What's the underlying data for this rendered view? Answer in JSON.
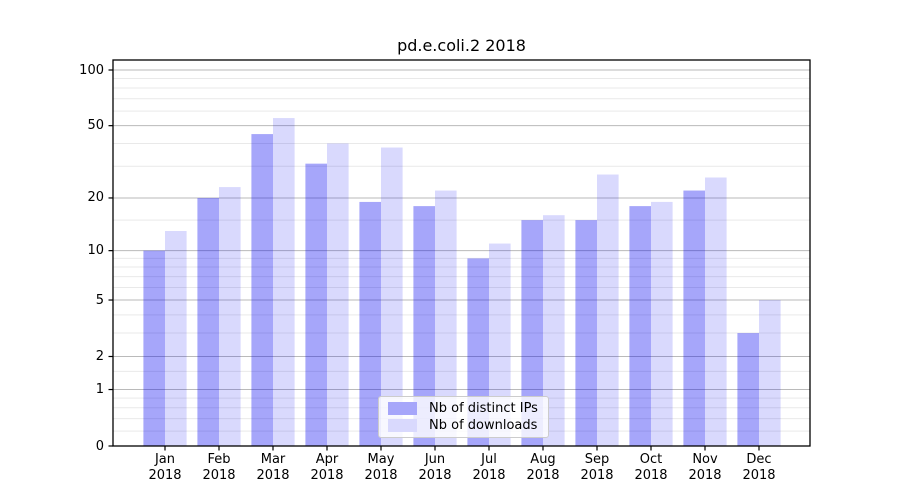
{
  "chart_data": {
    "type": "bar",
    "title": "pd.e.coli.2 2018",
    "categories": [
      "Jan",
      "Feb",
      "Mar",
      "Apr",
      "May",
      "Jun",
      "Jul",
      "Aug",
      "Sep",
      "Oct",
      "Nov",
      "Dec"
    ],
    "category_year": "2018",
    "series": [
      {
        "name": "Nb of distinct IPs",
        "base_color": "#0000f0",
        "opacity": 0.35,
        "rendered_color": "#a6a6fa",
        "values": [
          10,
          20,
          45,
          31,
          19,
          18,
          9,
          15,
          15,
          18,
          22,
          3
        ]
      },
      {
        "name": "Nb of downloads",
        "base_color": "#0000f0",
        "opacity": 0.15,
        "rendered_color": "#d9d9fd",
        "values": [
          13,
          23,
          55,
          40,
          38,
          22,
          11,
          16,
          27,
          19,
          26,
          5
        ]
      }
    ],
    "xlabel": "",
    "ylabel": "",
    "y_axis": {
      "scale": "log10(1+v)",
      "tick_labels": [
        "0",
        "1",
        "2",
        "5",
        "10",
        "20",
        "50",
        "100"
      ],
      "tick_values": [
        0,
        1,
        2,
        5,
        10,
        20,
        50,
        100
      ],
      "minor_gridline_values": [
        0.2,
        0.4,
        0.6,
        0.8,
        1.5,
        3,
        4,
        6,
        7,
        8,
        9,
        15,
        30,
        40,
        60,
        70,
        80,
        90
      ],
      "ylim": [
        0,
        113
      ]
    },
    "grid": {
      "on": true,
      "major_color": "#bababa",
      "minor_color": "#e9e9e9"
    },
    "legend": {
      "position": "lower center",
      "border_color": "#cccccc"
    }
  }
}
